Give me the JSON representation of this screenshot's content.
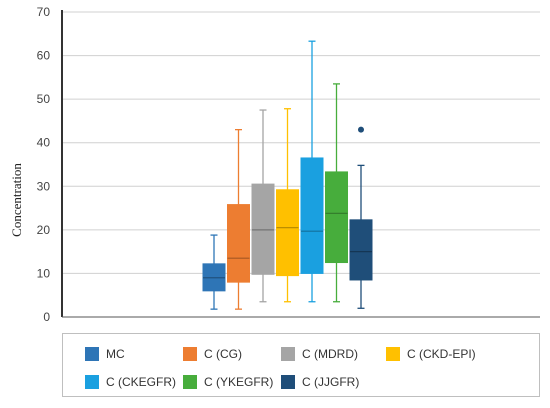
{
  "chart_data": {
    "type": "boxplot",
    "ylabel": "Concentration",
    "ylim": [
      0,
      70
    ],
    "yticks": [
      0,
      10,
      20,
      30,
      40,
      50,
      60,
      70
    ],
    "grid": "horizontal",
    "legend_position": "bottom",
    "series": [
      {
        "name": "MC",
        "color": "#2e75b6",
        "min": 1.8,
        "q1": 6.0,
        "median": 9.0,
        "q3": 12.2,
        "max": 18.8,
        "outliers": []
      },
      {
        "name": "C (CG)",
        "color": "#ed7d31",
        "min": 1.8,
        "q1": 8.0,
        "median": 13.5,
        "q3": 25.8,
        "max": 43.0,
        "outliers": []
      },
      {
        "name": "C (MDRD)",
        "color": "#a5a5a5",
        "min": 3.5,
        "q1": 9.8,
        "median": 20.0,
        "q3": 30.5,
        "max": 47.5,
        "outliers": []
      },
      {
        "name": "C (CKD-EPI)",
        "color": "#ffc000",
        "min": 3.5,
        "q1": 9.5,
        "median": 20.5,
        "q3": 29.2,
        "max": 47.8,
        "outliers": []
      },
      {
        "name": "C (CKEGFR)",
        "color": "#1aa0e0",
        "min": 3.5,
        "q1": 10.0,
        "median": 19.7,
        "q3": 36.5,
        "max": 63.3,
        "outliers": []
      },
      {
        "name": "C (YKEGFR)",
        "color": "#47ad3c",
        "min": 3.5,
        "q1": 12.5,
        "median": 23.8,
        "q3": 33.3,
        "max": 53.5,
        "outliers": []
      },
      {
        "name": "C (JJGFR)",
        "color": "#1f4e79",
        "min": 2.0,
        "q1": 8.5,
        "median": 15.0,
        "q3": 22.3,
        "max": 34.8,
        "outliers": [
          43.0
        ]
      }
    ]
  }
}
